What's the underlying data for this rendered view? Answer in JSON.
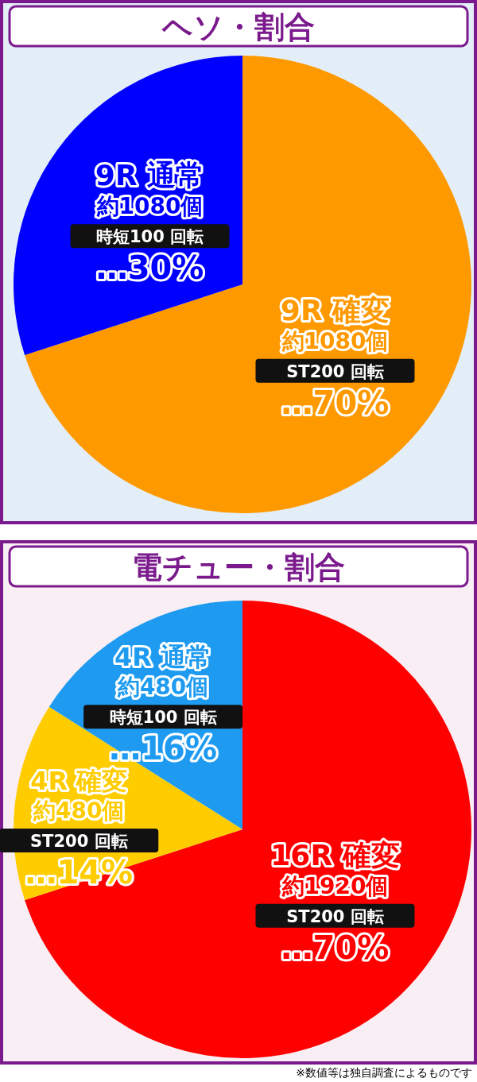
{
  "chart_data": [
    {
      "type": "pie",
      "title": "ヘソ・割合",
      "categories": [
        "9R 確変",
        "9R 通常"
      ],
      "values": [
        70,
        30
      ],
      "colors": [
        "#ff9900",
        "#0000ff"
      ],
      "value_labels": [
        "…70%",
        "…30%"
      ],
      "annotations": [
        {
          "text": "約1080個",
          "x": "9R 確変"
        },
        {
          "text": "ST200 回転",
          "x": "9R 確変"
        },
        {
          "text": "約1080個",
          "x": "9R 通常"
        },
        {
          "text": "時短100 回転",
          "x": "9R 通常"
        }
      ]
    },
    {
      "type": "pie",
      "title": "電チュー・割合",
      "categories": [
        "16R 確変",
        "4R 確変",
        "4R 通常"
      ],
      "values": [
        70,
        14,
        16
      ],
      "colors": [
        "#ff0000",
        "#ffcc00",
        "#1e9bf0"
      ],
      "value_labels": [
        "…70%",
        "…14%",
        "…16%"
      ],
      "annotations": [
        {
          "text": "約1920個",
          "x": "16R 確変"
        },
        {
          "text": "ST200 回転",
          "x": "16R 確変"
        },
        {
          "text": "約480個",
          "x": "4R 確変"
        },
        {
          "text": "ST200 回転",
          "x": "4R 確変"
        },
        {
          "text": "約480個",
          "x": "4R 通常"
        },
        {
          "text": "時短100 回転",
          "x": "4R 通常"
        },
        "※数値等は独自調査によるものです"
      ]
    }
  ]
}
